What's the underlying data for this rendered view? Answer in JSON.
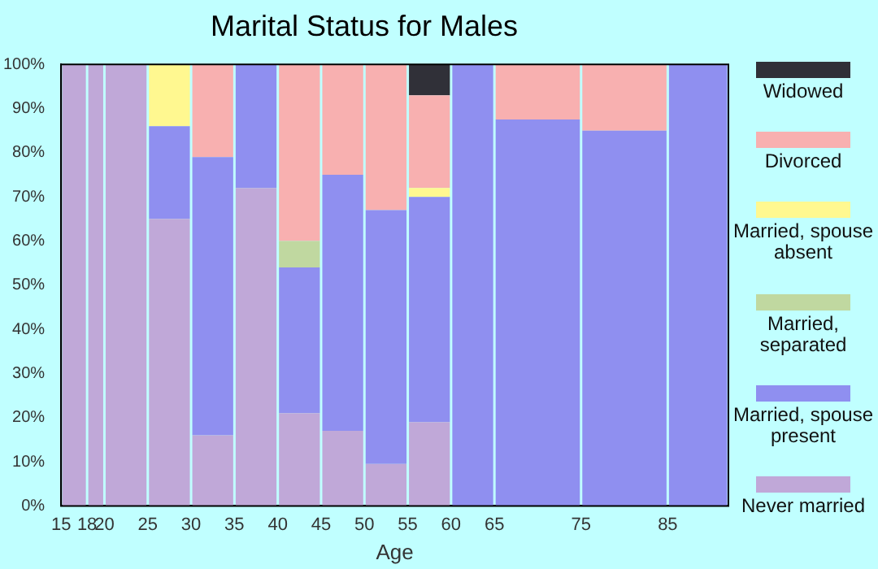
{
  "chart_data": {
    "type": "bar",
    "title": "Marital Status for Males",
    "xlabel": "Age",
    "stacked": true,
    "x": [
      16.5,
      19,
      22.5,
      27.5,
      32.5,
      37.5,
      42.5,
      47.5,
      52.5,
      57.5,
      62.5,
      70,
      80,
      88.5
    ],
    "xlim": [
      15,
      92
    ],
    "xticks": [
      15,
      18,
      20,
      25,
      30,
      35,
      40,
      45,
      50,
      55,
      60,
      65,
      75,
      85
    ],
    "ylim": [
      0,
      100
    ],
    "yticks": [
      {
        "value": 0,
        "label": "0%"
      },
      {
        "value": 10,
        "label": "10%"
      },
      {
        "value": 20,
        "label": "20%"
      },
      {
        "value": 30,
        "label": "30%"
      },
      {
        "value": 40,
        "label": "40%"
      },
      {
        "value": 50,
        "label": "50%"
      },
      {
        "value": 60,
        "label": "60%"
      },
      {
        "value": 70,
        "label": "70%"
      },
      {
        "value": 80,
        "label": "80%"
      },
      {
        "value": 90,
        "label": "90%"
      },
      {
        "value": 100,
        "label": "100%"
      }
    ],
    "grid": false,
    "legend": "right",
    "series": [
      {
        "name": "Never married",
        "color": "#c0a8d8",
        "values": [
          100,
          100,
          100,
          65,
          16,
          72,
          21,
          17,
          9.5,
          19,
          0,
          0,
          0,
          0
        ]
      },
      {
        "name": "Married, spouse present",
        "color": "#8f8ff0",
        "values": [
          0,
          0,
          0,
          21,
          63,
          28,
          33,
          58,
          57.5,
          51,
          100,
          87.5,
          85,
          100
        ]
      },
      {
        "name": "Married, separated",
        "color": "#c0d8a0",
        "values": [
          0,
          0,
          0,
          0,
          0,
          0,
          6,
          0,
          0,
          0,
          0,
          0,
          0,
          0
        ]
      },
      {
        "name": "Married, spouse absent",
        "color": "#fff890",
        "values": [
          0,
          0,
          0,
          14,
          0,
          0,
          0,
          0,
          0,
          2,
          0,
          0,
          0,
          0
        ]
      },
      {
        "name": "Divorced",
        "color": "#f8b0b0",
        "values": [
          0,
          0,
          0,
          0,
          21,
          0,
          40,
          25,
          33,
          21,
          0,
          12.5,
          15,
          0
        ]
      },
      {
        "name": "Widowed",
        "color": "#303038",
        "values": [
          0,
          0,
          0,
          0,
          0,
          0,
          0,
          0,
          0,
          7,
          0,
          0,
          0,
          0
        ]
      }
    ]
  }
}
